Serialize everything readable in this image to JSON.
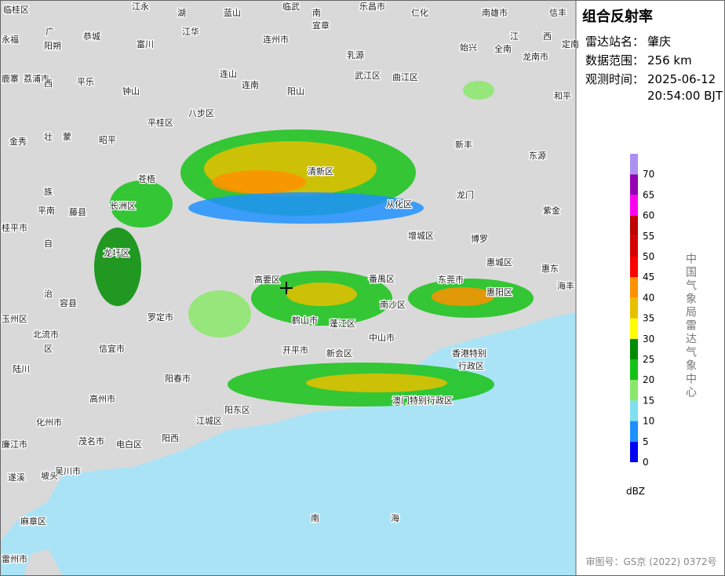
{
  "header": {
    "title": "组合反射率",
    "station_label": "雷达站名：",
    "station": "肇庆",
    "range_label": "数据范围：",
    "range": "256 km",
    "time_label": "观测时间：",
    "date": "2025-06-12",
    "time": "20:54:00 BJT"
  },
  "legend": {
    "unit": "dBZ",
    "levels": [
      {
        "value": 0,
        "color": "#0000f6"
      },
      {
        "value": 5,
        "color": "#1e90ff"
      },
      {
        "value": 10,
        "color": "#7fe0f0"
      },
      {
        "value": 15,
        "color": "#8ae76b"
      },
      {
        "value": 20,
        "color": "#16c216"
      },
      {
        "value": 25,
        "color": "#008c00"
      },
      {
        "value": 30,
        "color": "#fefe00"
      },
      {
        "value": 35,
        "color": "#e7c000"
      },
      {
        "value": 40,
        "color": "#ff9000"
      },
      {
        "value": 45,
        "color": "#ff0000"
      },
      {
        "value": 50,
        "color": "#d60000"
      },
      {
        "value": 55,
        "color": "#c00000"
      },
      {
        "value": 60,
        "color": "#ff00f0"
      },
      {
        "value": 65,
        "color": "#9600b4"
      },
      {
        "value": 70,
        "color": "#ad90f0"
      }
    ]
  },
  "source": "中国气象局雷达气象中心",
  "approval": "审图号：GS京 (2022) 0372号",
  "map_labels": [
    "临桂区",
    "江永",
    "湖",
    "蓝山",
    "临武",
    "南",
    "宜章",
    "乐昌市",
    "仁化",
    "南雄市",
    "信丰",
    "广",
    "恭城",
    "江华",
    "连州市",
    "始兴",
    "江",
    "西",
    "永福",
    "阳朔",
    "富川",
    "乳源",
    "全南",
    "龙南市",
    "鹿寨",
    "荔浦市",
    "平乐",
    "钟山",
    "连山",
    "连南",
    "武江区",
    "曲江区",
    "定南",
    "和平",
    "阳山",
    "八步区",
    "平桂区",
    "金秀",
    "昭平",
    "新丰",
    "东源",
    "清新区",
    "从化区",
    "龙门",
    "紫金",
    "苍梧",
    "平南",
    "藤县",
    "长洲区",
    "增城区",
    "博罗",
    "桂平市",
    "龙圩区",
    "惠城区",
    "惠东",
    "高要区",
    "番禺区",
    "东莞市",
    "容县",
    "惠阳区",
    "海丰",
    "罗定市",
    "玉州区",
    "北流市",
    "南沙区",
    "鹤山市",
    "蓬江区",
    "信宜市",
    "开平市",
    "中山市",
    "新会区",
    "香港特别",
    "行政区",
    "陆川",
    "阳春市",
    "高州市",
    "澳门特别行政区",
    "阳东区",
    "化州市",
    "江城区",
    "茂名市",
    "电白区",
    "阳西",
    "廉江市",
    "吴川市",
    "遂溪",
    "坡头",
    "麻章区",
    "雷州市",
    "南",
    "海",
    "壮",
    "族",
    "自",
    "治",
    "区",
    "蒙",
    "西"
  ]
}
